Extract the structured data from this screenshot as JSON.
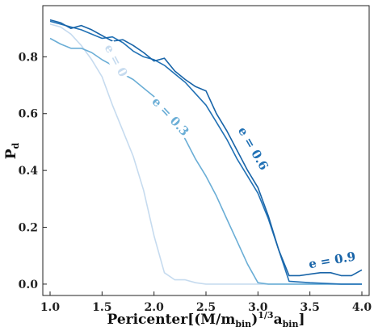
{
  "chart_data": {
    "type": "line",
    "xlabel": {
      "main": "Pericenter[(M/m",
      "sub1": "bin",
      "mid": ")",
      "sup": "1/3",
      "a": "a",
      "sub2": "bin",
      "end": "]"
    },
    "ylabel": {
      "main": "P",
      "sub": "d"
    },
    "xlim": [
      0.93,
      4.07
    ],
    "ylim": [
      -0.04,
      0.98
    ],
    "xticks": [
      "1.0",
      "1.5",
      "2.0",
      "2.5",
      "3.0",
      "3.5",
      "4.0"
    ],
    "yticks": [
      "0.0",
      "0.2",
      "0.4",
      "0.6",
      "0.8"
    ],
    "grid": false,
    "series": [
      {
        "name": "e = 0",
        "color": "#c6dbef",
        "x": [
          1.0,
          1.1,
          1.2,
          1.3,
          1.4,
          1.5,
          1.6,
          1.7,
          1.8,
          1.9,
          2.0,
          2.1,
          2.2,
          2.3,
          2.4,
          2.5,
          2.6,
          2.7,
          2.8,
          2.9,
          3.0,
          3.5,
          4.0
        ],
        "y": [
          0.915,
          0.905,
          0.88,
          0.84,
          0.79,
          0.73,
          0.63,
          0.54,
          0.45,
          0.33,
          0.17,
          0.04,
          0.015,
          0.015,
          0.005,
          0.0,
          0.0,
          0.0,
          0.0,
          0.0,
          0.0,
          0.0,
          0.0
        ]
      },
      {
        "name": "e = 0.3",
        "color": "#6baed6",
        "x": [
          1.0,
          1.1,
          1.2,
          1.3,
          1.4,
          1.5,
          1.6,
          1.7,
          1.8,
          1.9,
          2.0,
          2.1,
          2.2,
          2.3,
          2.4,
          2.5,
          2.6,
          2.7,
          2.8,
          2.9,
          3.0,
          3.1,
          3.2,
          3.3,
          3.5,
          4.0
        ],
        "y": [
          0.865,
          0.845,
          0.83,
          0.83,
          0.815,
          0.79,
          0.77,
          0.74,
          0.72,
          0.69,
          0.66,
          0.6,
          0.56,
          0.51,
          0.44,
          0.38,
          0.31,
          0.23,
          0.15,
          0.07,
          0.005,
          0.0,
          0.0,
          0.0,
          0.0,
          0.0
        ]
      },
      {
        "name": "e = 0.6",
        "color": "#2171b5",
        "x": [
          1.0,
          1.1,
          1.2,
          1.3,
          1.4,
          1.5,
          1.6,
          1.7,
          1.8,
          1.9,
          2.0,
          2.1,
          2.2,
          2.3,
          2.4,
          2.5,
          2.6,
          2.7,
          2.8,
          2.9,
          3.0,
          3.1,
          3.2,
          3.3,
          3.5,
          3.8,
          4.0
        ],
        "y": [
          0.925,
          0.915,
          0.905,
          0.895,
          0.88,
          0.865,
          0.87,
          0.85,
          0.82,
          0.8,
          0.79,
          0.77,
          0.74,
          0.71,
          0.67,
          0.63,
          0.57,
          0.51,
          0.44,
          0.38,
          0.32,
          0.23,
          0.12,
          0.01,
          0.005,
          0.0,
          0.0
        ]
      },
      {
        "name": "e = 0.9",
        "color": "#1864a8",
        "x": [
          1.0,
          1.1,
          1.2,
          1.3,
          1.4,
          1.5,
          1.6,
          1.7,
          1.8,
          1.9,
          2.0,
          2.1,
          2.2,
          2.3,
          2.4,
          2.5,
          2.6,
          2.7,
          2.8,
          2.9,
          3.0,
          3.1,
          3.2,
          3.3,
          3.4,
          3.5,
          3.6,
          3.7,
          3.8,
          3.9,
          4.0
        ],
        "y": [
          0.93,
          0.92,
          0.9,
          0.91,
          0.895,
          0.875,
          0.855,
          0.86,
          0.84,
          0.815,
          0.785,
          0.795,
          0.75,
          0.72,
          0.695,
          0.68,
          0.6,
          0.54,
          0.47,
          0.4,
          0.34,
          0.24,
          0.12,
          0.03,
          0.03,
          0.035,
          0.04,
          0.04,
          0.03,
          0.03,
          0.05
        ]
      }
    ],
    "annotations": [
      {
        "text": "e = 0",
        "x": 1.6,
        "y": 0.78,
        "angle": 62,
        "color": "#c6dbef"
      },
      {
        "text": "e = 0.3",
        "x": 2.13,
        "y": 0.58,
        "angle": 47,
        "color": "#6baed6"
      },
      {
        "text": "e = 0.6",
        "x": 2.92,
        "y": 0.47,
        "angle": 60,
        "color": "#2171b5"
      },
      {
        "text": "e = 0.9",
        "x": 3.72,
        "y": 0.07,
        "angle": -10,
        "color": "#1864a8"
      }
    ]
  }
}
